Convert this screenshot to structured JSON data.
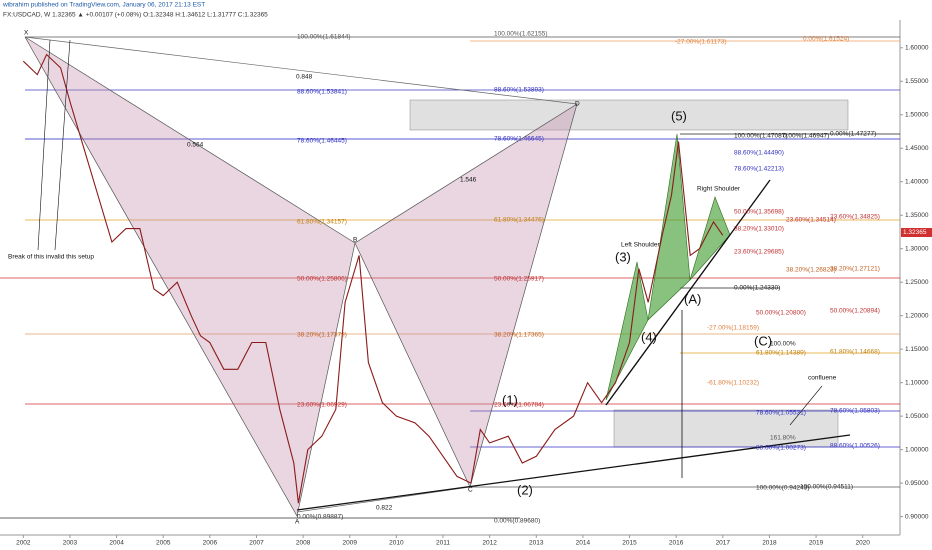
{
  "header": {
    "publisher": "wibrahim published on TradingView.com, January 06, 2017 21:13 EST",
    "symbol": "FX:USDCAD, W 1.32365 ▲ +0.00107 (+0.08%) O:1.32348 H:1.34612 L:1.31777 C:1.32365"
  },
  "chart_data": {
    "type": "line",
    "x": [
      2002.0,
      2002.3,
      2002.5,
      2002.8,
      2003.0,
      2003.3,
      2003.6,
      2003.9,
      2004.2,
      2004.5,
      2004.8,
      2005.0,
      2005.3,
      2005.6,
      2005.8,
      2006.0,
      2006.3,
      2006.6,
      2006.9,
      2007.2,
      2007.5,
      2007.8,
      2007.9,
      2008.1,
      2008.4,
      2008.7,
      2008.9,
      2009.2,
      2009.4,
      2009.7,
      2010.0,
      2010.4,
      2010.7,
      2011.0,
      2011.3,
      2011.6,
      2011.8,
      2012.0,
      2012.4,
      2012.7,
      2013.0,
      2013.4,
      2013.8,
      2014.1,
      2014.4,
      2014.7,
      2015.0,
      2015.2,
      2015.4,
      2015.7,
      2015.9,
      2016.05,
      2016.3,
      2016.5,
      2016.8,
      2017.0
    ],
    "series": [
      {
        "name": "FX:USDCAD",
        "color": "#8b1a1a",
        "values": [
          1.58,
          1.56,
          1.59,
          1.57,
          1.52,
          1.45,
          1.38,
          1.31,
          1.33,
          1.33,
          1.24,
          1.23,
          1.25,
          1.2,
          1.17,
          1.16,
          1.12,
          1.12,
          1.16,
          1.16,
          1.06,
          0.98,
          0.92,
          1.0,
          1.02,
          1.06,
          1.22,
          1.29,
          1.13,
          1.07,
          1.05,
          1.04,
          1.02,
          0.99,
          0.96,
          0.95,
          1.03,
          1.01,
          1.02,
          0.98,
          0.99,
          1.03,
          1.05,
          1.1,
          1.07,
          1.1,
          1.16,
          1.27,
          1.22,
          1.32,
          1.38,
          1.46,
          1.29,
          1.3,
          1.34,
          1.32
        ]
      }
    ],
    "xlim": [
      2001.5,
      2020.8
    ],
    "xticks": [
      2002,
      2003,
      2004,
      2005,
      2006,
      2007,
      2008,
      2009,
      2010,
      2011,
      2012,
      2013,
      2014,
      2015,
      2016,
      2017,
      2018,
      2019,
      2020
    ],
    "ylim": [
      0.88,
      1.64
    ],
    "yticks": [
      {
        "value": 0.9,
        "label": "0.90000"
      },
      {
        "value": 0.95,
        "label": "0.95000"
      },
      {
        "value": 1.0,
        "label": "1.00000"
      },
      {
        "value": 1.05,
        "label": "1.05000"
      },
      {
        "value": 1.1,
        "label": "1.10000"
      },
      {
        "value": 1.15,
        "label": "1.15000"
      },
      {
        "value": 1.2,
        "label": "1.20000"
      },
      {
        "value": 1.25,
        "label": "1.25000"
      },
      {
        "value": 1.3,
        "label": "1.30000"
      },
      {
        "value": 1.35,
        "label": "1.35000"
      },
      {
        "value": 1.4,
        "label": "1.40000"
      },
      {
        "value": 1.45,
        "label": "1.45000"
      },
      {
        "value": 1.5,
        "label": "1.50000"
      },
      {
        "value": 1.55,
        "label": "1.55000"
      },
      {
        "value": 1.6,
        "label": "1.60000"
      }
    ],
    "last_price_label": "1.32365",
    "annotations": [
      "100.00%(1.61844)",
      "100.00%(1.62155)",
      "-27.00%(1.61173)",
      "0.00%(1.61524)",
      "88.60%(1.53841)",
      "88.60%(1.53893)",
      "78.60%(1.46445)",
      "78.60%(1.46645)",
      "61.80%(1.34157)",
      "61.80%(1.34476)",
      "50.00%(1.25806)",
      "50.00%(1.25917)",
      "38.20%(1.17379)",
      "38.20%(1.17365)",
      "23.60%(1.06929)",
      "23.60%(1.06784)",
      "0.00%(0.89887)",
      "0.00%(0.89680)",
      "100.00%(1.47087)",
      "0.00%(1.46947)",
      "0.00%(1.47277)",
      "88.60%(1.44490)",
      "78.60%(1.42213)",
      "50.00%(1.35698)",
      "23.60%(1.34514)",
      "23.60%(1.34825)",
      "38.20%(1.33010)",
      "23.60%(1.29685)",
      "38.20%(1.26823)",
      "38.20%(1.27121)",
      "0.00%(1.24330)",
      "50.00%(1.20800)",
      "50.00%(1.20894)",
      "-27.00%(1.18159)",
      "100.00%",
      "61.80%(1.14389)",
      "61.80%(1.14668)",
      "-61.80%(1.10232)",
      "78.60%(1.05531)",
      "78.60%(1.05803)",
      "161.80%",
      "88.60%(1.00273)",
      "88.60%(1.00526)",
      "100.00%(0.94243)",
      "100.00%(0.94511)",
      "(1)",
      "(2)",
      "(3)",
      "(4)",
      "(5)",
      "(A)",
      "(C)",
      "X",
      "A",
      "B",
      "C",
      "D",
      "0.848",
      "0.564",
      "1.546",
      "0.822",
      "Left Shoulder",
      "Right Shoulder",
      "confluene",
      "Break of this invalid this setup"
    ]
  }
}
